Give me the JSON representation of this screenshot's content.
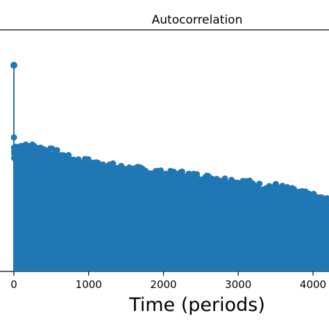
{
  "chart_data": {
    "type": "stem",
    "title": "Autocorrelation",
    "xlabel": "Time (periods)",
    "ylabel": "",
    "xlim": [
      -80,
      4300
    ],
    "ylim": [
      0,
      1.0
    ],
    "x_ticks": [
      0,
      1000,
      2000,
      3000,
      4000
    ],
    "x_tick_labels": [
      "0",
      "1000",
      "2000",
      "3000",
      "4000"
    ],
    "series_color": "#1f77b4",
    "grid": false,
    "lag0_value": 1.0,
    "envelope": {
      "x": [
        1,
        3,
        5,
        10,
        20,
        50,
        100,
        150,
        200,
        300,
        400,
        500,
        600,
        700,
        800,
        900,
        1000,
        1100,
        1200,
        1300,
        1400,
        1500,
        1600,
        1700,
        1800,
        1900,
        2000,
        2100,
        2200,
        2300,
        2400,
        2500,
        2600,
        2700,
        2800,
        2900,
        3000,
        3100,
        3200,
        3300,
        3400,
        3500,
        3600,
        3700,
        3800,
        3900,
        4000,
        4100,
        4200,
        4300
      ],
      "y": [
        0.65,
        0.62,
        0.6,
        0.59,
        0.6,
        0.61,
        0.61,
        0.6,
        0.61,
        0.6,
        0.59,
        0.58,
        0.57,
        0.55,
        0.54,
        0.53,
        0.53,
        0.52,
        0.52,
        0.51,
        0.5,
        0.5,
        0.49,
        0.49,
        0.48,
        0.48,
        0.47,
        0.47,
        0.47,
        0.47,
        0.46,
        0.46,
        0.45,
        0.45,
        0.44,
        0.44,
        0.43,
        0.43,
        0.42,
        0.41,
        0.41,
        0.41,
        0.4,
        0.39,
        0.38,
        0.37,
        0.36,
        0.35,
        0.34,
        0.33
      ]
    }
  }
}
